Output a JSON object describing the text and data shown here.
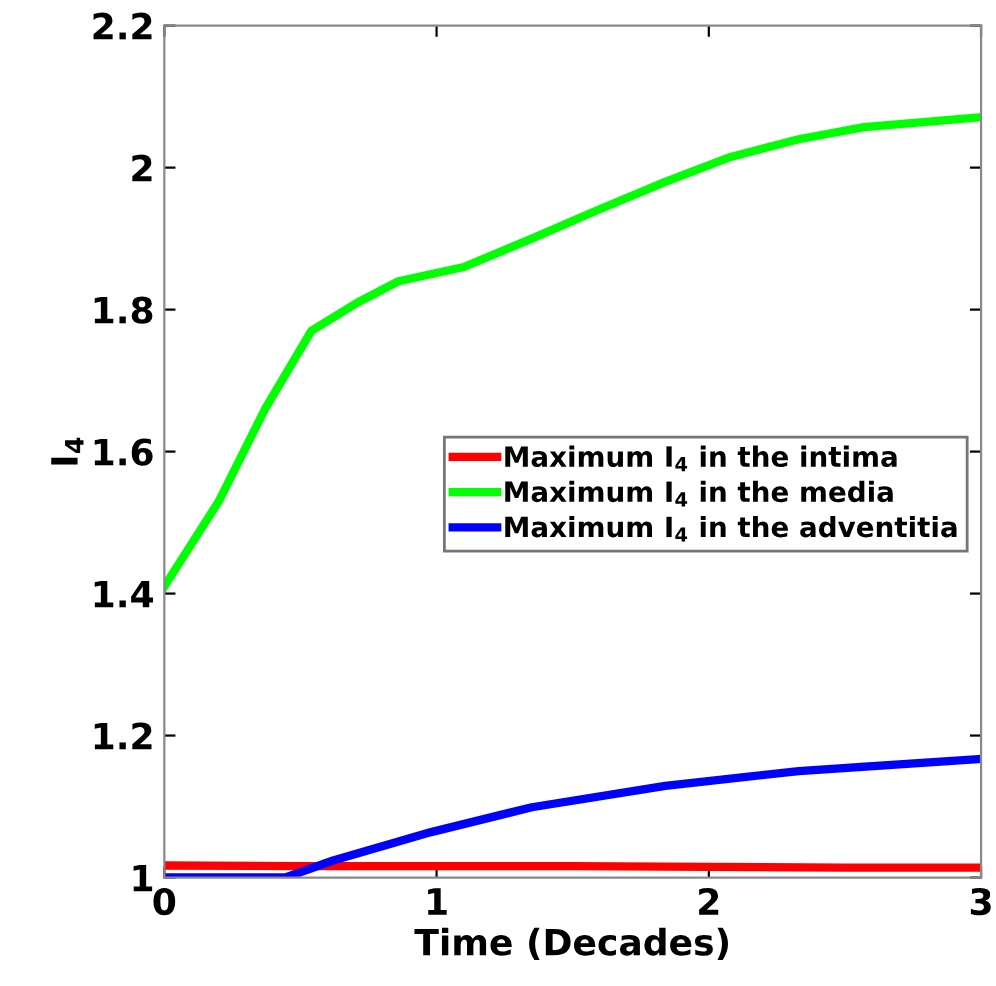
{
  "chart_data": {
    "type": "line",
    "xlabel": "Time (Decades)",
    "ylabel": "I$_{4}$",
    "xlim": [
      0,
      3
    ],
    "ylim": [
      1,
      2.2
    ],
    "xticks": [
      0,
      1,
      2,
      3
    ],
    "yticks": [
      1,
      1.2,
      1.4,
      1.6,
      1.8,
      2,
      2.2
    ],
    "grid": false,
    "legend": "right",
    "line_style": "solid",
    "marker": "none",
    "series": [
      {
        "name": "Maximum I$_{4}$ in the intima",
        "color": "#ff0000",
        "x": [
          0,
          0.5,
          1,
          1.5,
          2,
          2.5,
          3
        ],
        "values": [
          1.017,
          1.016,
          1.016,
          1.016,
          1.015,
          1.014,
          1.014
        ]
      },
      {
        "name": "Maximum I$_{4}$ in the media",
        "color": "#00ff00",
        "x": [
          0,
          0.1,
          0.2,
          0.37,
          0.54,
          0.71,
          0.86,
          1.1,
          1.35,
          1.59,
          1.84,
          2.08,
          2.33,
          2.57,
          3
        ],
        "values": [
          1.41,
          1.47,
          1.53,
          1.66,
          1.77,
          1.81,
          1.84,
          1.86,
          1.9,
          1.94,
          1.98,
          2.015,
          2.04,
          2.057,
          2.071
        ]
      },
      {
        "name": "Maximum I$_{4}$ in the adventitia",
        "color": "#0000ff",
        "x": [
          0,
          0.445,
          0.62,
          0.98,
          1.35,
          1.84,
          2.33,
          3
        ],
        "values": [
          1.0,
          1.0,
          1.024,
          1.064,
          1.099,
          1.129,
          1.15,
          1.167
        ]
      }
    ]
  }
}
